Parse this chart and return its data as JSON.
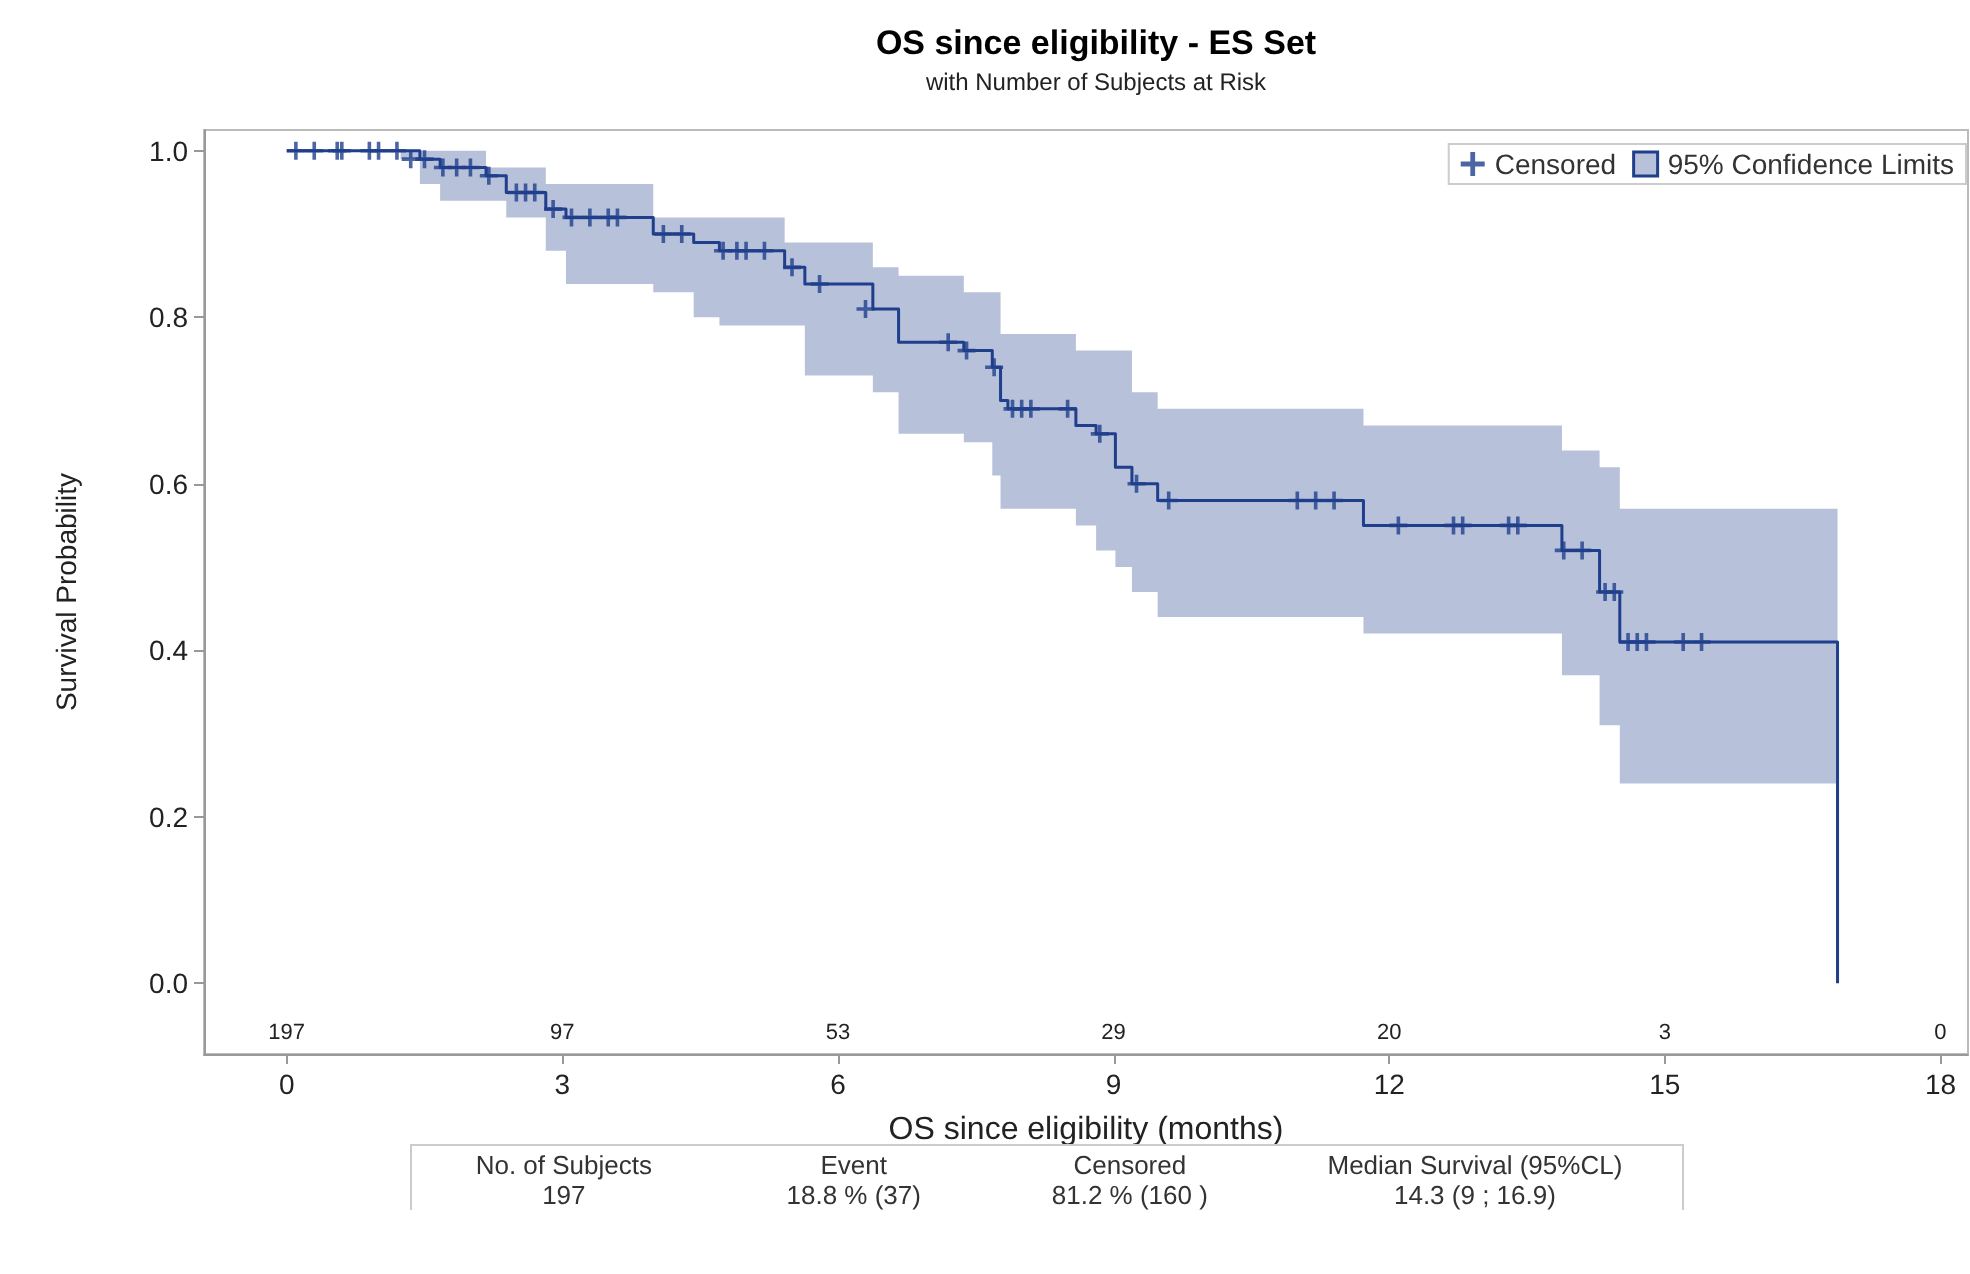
{
  "chart_data": {
    "type": "step",
    "title": "OS since eligibility - ES Set",
    "subtitle": "with Number of Subjects at Risk",
    "xlabel": "OS since eligibility (months)",
    "ylabel": "Survival Probability",
    "xlim": [
      -0.9,
      18.3
    ],
    "xticks": [
      0,
      3,
      6,
      9,
      12,
      15,
      18
    ],
    "ylim": [
      -0.085,
      1.025
    ],
    "yticks": [
      {
        "value": 0,
        "label": "0.0"
      },
      {
        "value": 0.2,
        "label": "0.2"
      },
      {
        "value": 0.4,
        "label": "0.4"
      },
      {
        "value": 0.6,
        "label": "0.6"
      },
      {
        "value": 0.8,
        "label": "0.8"
      },
      {
        "value": 1,
        "label": "1.0"
      }
    ],
    "grid": false,
    "legend": "top right",
    "series": [
      {
        "type": "scatter",
        "name": "Censored",
        "color": "#1f3e8c",
        "marker": "cross",
        "x": [
          0.1,
          0.3,
          0.55,
          0.6,
          0.9,
          1.0,
          1.2,
          1.35,
          1.5,
          1.7,
          1.85,
          2.0,
          2.2,
          2.5,
          2.6,
          2.7,
          2.9,
          3.1,
          3.3,
          3.5,
          3.6,
          4.1,
          4.3,
          4.75,
          4.9,
          5.0,
          5.2,
          5.5,
          5.8,
          6.3,
          7.2,
          7.4,
          7.7,
          7.9,
          8.0,
          8.1,
          8.5,
          8.85,
          9.25,
          9.6,
          11.0,
          11.2,
          11.4,
          12.1,
          12.7,
          12.8,
          13.3,
          13.4,
          13.9,
          14.1,
          14.35,
          14.45,
          14.6,
          14.7,
          14.8,
          15.2,
          15.4
        ],
        "values": [
          1.0,
          1.0,
          1.0,
          1.0,
          1.0,
          1.0,
          1.0,
          0.99,
          0.99,
          0.98,
          0.98,
          0.98,
          0.97,
          0.95,
          0.95,
          0.95,
          0.93,
          0.92,
          0.92,
          0.92,
          0.92,
          0.9,
          0.9,
          0.88,
          0.88,
          0.88,
          0.88,
          0.86,
          0.84,
          0.81,
          0.77,
          0.76,
          0.74,
          0.69,
          0.69,
          0.69,
          0.69,
          0.66,
          0.6,
          0.58,
          0.58,
          0.58,
          0.58,
          0.55,
          0.55,
          0.55,
          0.55,
          0.55,
          0.52,
          0.52,
          0.47,
          0.47,
          0.41,
          0.41,
          0.41,
          0.41,
          0.41
        ]
      },
      {
        "name": "95% Confidence Limits",
        "color": "#1f3e8c",
        "x": [
          0,
          1.24,
          1.45,
          1.67,
          2.17,
          2.39,
          2.82,
          3.04,
          3.99,
          4.43,
          4.71,
          5.42,
          5.64,
          6.38,
          6.66,
          7.37,
          7.68,
          7.77,
          7.85,
          8.59,
          8.81,
          9.02,
          9.2,
          9.48,
          11.72,
          13.88,
          14.29,
          14.51,
          16.88,
          16.88
        ],
        "values": [
          1.0,
          1.0,
          0.99,
          0.98,
          0.97,
          0.95,
          0.93,
          0.92,
          0.9,
          0.89,
          0.88,
          0.86,
          0.84,
          0.81,
          0.77,
          0.76,
          0.74,
          0.7,
          0.69,
          0.67,
          0.66,
          0.62,
          0.6,
          0.58,
          0.55,
          0.52,
          0.47,
          0.41,
          0.41,
          0
        ],
        "upper": [
          1.0,
          1.0,
          1.0,
          1.0,
          0.98,
          0.98,
          0.96,
          0.96,
          0.92,
          0.92,
          0.92,
          0.89,
          0.89,
          0.86,
          0.85,
          0.83,
          0.83,
          0.78,
          0.78,
          0.76,
          0.76,
          0.76,
          0.71,
          0.69,
          0.67,
          0.64,
          0.62,
          0.57,
          0.57,
          0.57
        ],
        "lower": [
          1.0,
          0.99,
          0.96,
          0.94,
          0.94,
          0.92,
          0.88,
          0.84,
          0.83,
          0.8,
          0.79,
          0.79,
          0.73,
          0.71,
          0.66,
          0.65,
          0.61,
          0.57,
          0.57,
          0.55,
          0.52,
          0.5,
          0.47,
          0.44,
          0.42,
          0.37,
          0.31,
          0.24,
          0.24,
          0.24
        ]
      }
    ],
    "annotations": [
      "197",
      "97",
      "53",
      "29",
      "20",
      "3",
      "0",
      "No. of Subjects",
      "Event",
      "Censored",
      "Median Survival (95%CL)",
      "197",
      "18.8 % (37)",
      "81.2 % (160 )",
      "14.3 (9 ; 16.9)"
    ]
  }
}
